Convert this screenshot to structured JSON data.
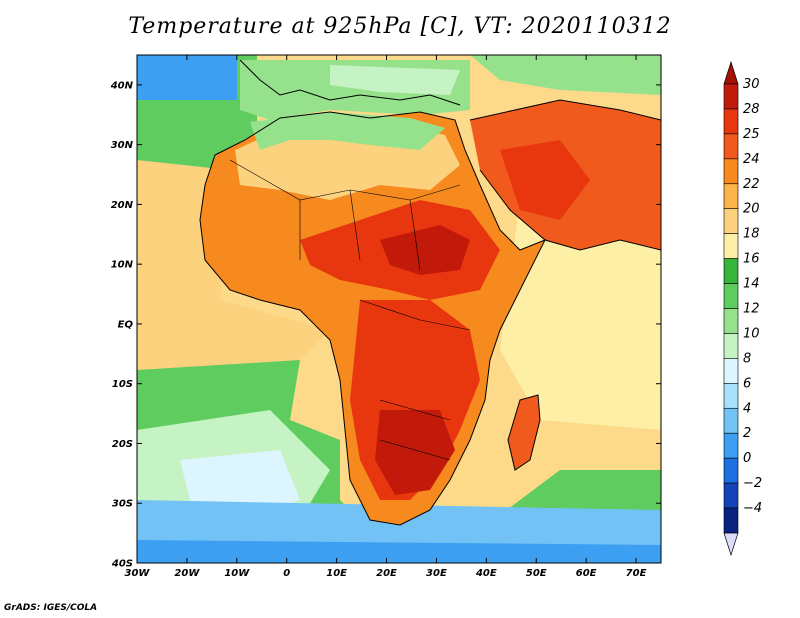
{
  "title": "Temperature at 925hPa [C], VT: 2020110312",
  "credit": "GrADS: IGES/COLA",
  "map": {
    "lon_range": [
      -30,
      75
    ],
    "lat_range": [
      -40,
      45
    ],
    "lon_ticks": [
      {
        "value": -30,
        "label": "30W"
      },
      {
        "value": -20,
        "label": "20W"
      },
      {
        "value": -10,
        "label": "10W"
      },
      {
        "value": 0,
        "label": "0"
      },
      {
        "value": 10,
        "label": "10E"
      },
      {
        "value": 20,
        "label": "20E"
      },
      {
        "value": 30,
        "label": "30E"
      },
      {
        "value": 40,
        "label": "40E"
      },
      {
        "value": 50,
        "label": "50E"
      },
      {
        "value": 60,
        "label": "60E"
      },
      {
        "value": 70,
        "label": "70E"
      }
    ],
    "lat_ticks": [
      {
        "value": 40,
        "label": "40N"
      },
      {
        "value": 30,
        "label": "30N"
      },
      {
        "value": 20,
        "label": "20N"
      },
      {
        "value": 10,
        "label": "10N"
      },
      {
        "value": 0,
        "label": "EQ"
      },
      {
        "value": -10,
        "label": "10S"
      },
      {
        "value": -20,
        "label": "20S"
      },
      {
        "value": -30,
        "label": "30S"
      },
      {
        "value": -40,
        "label": "40S"
      }
    ]
  },
  "colorbar": {
    "levels": [
      {
        "label": "30",
        "color": "#c11a0a"
      },
      {
        "label": "28",
        "color": "#e8370f"
      },
      {
        "label": "25",
        "color": "#f05a1c"
      },
      {
        "label": "24",
        "color": "#f78a1e"
      },
      {
        "label": "22",
        "color": "#fab44a"
      },
      {
        "label": "20",
        "color": "#fcd27e"
      },
      {
        "label": "18",
        "color": "#fdf0a6"
      },
      {
        "label": "16",
        "color": "#36b53a"
      },
      {
        "label": "14",
        "color": "#5fcc5f"
      },
      {
        "label": "12",
        "color": "#96e28c"
      },
      {
        "label": "10",
        "color": "#c6f3c4"
      },
      {
        "label": "8",
        "color": "#dcf5ff"
      },
      {
        "label": "6",
        "color": "#a6e2fb"
      },
      {
        "label": "4",
        "color": "#72c2f6"
      },
      {
        "label": "2",
        "color": "#3d9ff1"
      },
      {
        "label": "0",
        "color": "#1e6ee0"
      },
      {
        "label": "−2",
        "color": "#1443b8"
      },
      {
        "label": "−4",
        "color": "#0b2380"
      }
    ],
    "top_arrow_color": "#a50f06",
    "bottom_arrow_color": "#dcdcf8"
  }
}
